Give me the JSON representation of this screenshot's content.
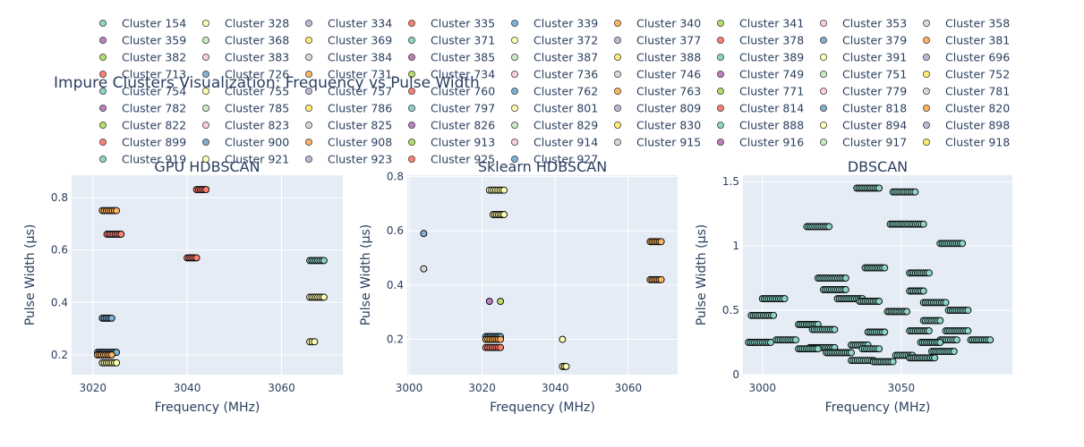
{
  "title": "Impure Clusters Visualization: Frequency vs Pulse Width",
  "legend": {
    "placement": "top",
    "columns": 9,
    "entries": [
      "Cluster 154",
      "Cluster 328",
      "Cluster 334",
      "Cluster 335",
      "Cluster 339",
      "Cluster 340",
      "Cluster 341",
      "Cluster 353",
      "Cluster 358",
      "Cluster 359",
      "Cluster 368",
      "Cluster 369",
      "Cluster 371",
      "Cluster 372",
      "Cluster 377",
      "Cluster 378",
      "Cluster 379",
      "Cluster 381",
      "Cluster 382",
      "Cluster 383",
      "Cluster 384",
      "Cluster 385",
      "Cluster 387",
      "Cluster 388",
      "Cluster 389",
      "Cluster 391",
      "Cluster 696",
      "Cluster 713",
      "Cluster 726",
      "Cluster 731",
      "Cluster 734",
      "Cluster 736",
      "Cluster 746",
      "Cluster 749",
      "Cluster 751",
      "Cluster 752",
      "Cluster 754",
      "Cluster 755",
      "Cluster 757",
      "Cluster 760",
      "Cluster 762",
      "Cluster 763",
      "Cluster 771",
      "Cluster 779",
      "Cluster 781",
      "Cluster 782",
      "Cluster 785",
      "Cluster 786",
      "Cluster 797",
      "Cluster 801",
      "Cluster 809",
      "Cluster 814",
      "Cluster 818",
      "Cluster 820",
      "Cluster 822",
      "Cluster 823",
      "Cluster 825",
      "Cluster 826",
      "Cluster 829",
      "Cluster 830",
      "Cluster 888",
      "Cluster 894",
      "Cluster 898",
      "Cluster 899",
      "Cluster 900",
      "Cluster 908",
      "Cluster 913",
      "Cluster 914",
      "Cluster 915",
      "Cluster 916",
      "Cluster 917",
      "Cluster 918",
      "Cluster 919",
      "Cluster 921",
      "Cluster 923",
      "Cluster 925",
      "Cluster 927"
    ]
  },
  "palette": [
    "#8dd3c7",
    "#ffffb3",
    "#bebada",
    "#fb8072",
    "#80b1d3",
    "#fdb462",
    "#b3de69",
    "#fccde5",
    "#d9d9d9",
    "#bc80bd",
    "#ccebc5",
    "#ffed6f"
  ],
  "colors": {
    "plot_bg": "#e5ecf6",
    "grid": "#ffffff",
    "text": "#2a3f5f",
    "marker_outline": "#000000"
  },
  "chart_data": [
    {
      "type": "scatter",
      "title": "GPU HDBSCAN",
      "xlabel": "Frequency (MHz)",
      "ylabel": "Pulse Width (µs)",
      "xlim": [
        3015.5,
        3073
      ],
      "ylim": [
        0.125,
        0.885
      ],
      "xticks": [
        3020,
        3040,
        3060
      ],
      "xtick_labels": [
        "3020",
        "3040",
        "3060"
      ],
      "yticks": [
        0.2,
        0.4,
        0.6,
        0.8
      ],
      "ytick_labels": [
        "0.2",
        "0.4",
        "0.6",
        "0.8"
      ],
      "grid": true,
      "groups": [
        {
          "x": [
            3042.0,
            3044.0
          ],
          "y": 0.83,
          "color": 3
        },
        {
          "x": [
            3022.0,
            3025.0
          ],
          "y": 0.75,
          "color": 5
        },
        {
          "x": [
            3023.0,
            3026.0
          ],
          "y": 0.66,
          "color": 3
        },
        {
          "x": [
            3040.0,
            3042.0
          ],
          "y": 0.57,
          "color": 3
        },
        {
          "x": [
            3066.0,
            3069.0
          ],
          "y": 0.56,
          "color": 0
        },
        {
          "x": [
            3066.0,
            3069.0
          ],
          "y": 0.42,
          "color": 1
        },
        {
          "x": [
            3022.0,
            3024.0
          ],
          "y": 0.34,
          "color": 4
        },
        {
          "x": [
            3066.0,
            3067.0
          ],
          "y": 0.25,
          "color": 1
        },
        {
          "x": [
            3021.0,
            3025.0
          ],
          "y": 0.21,
          "color": 4
        },
        {
          "x": [
            3021.0,
            3024.0
          ],
          "y": 0.2,
          "color": 5
        },
        {
          "x": [
            3022.0,
            3025.0
          ],
          "y": 0.17,
          "color": 1
        }
      ]
    },
    {
      "type": "scatter",
      "title": "Sklearn HDBSCAN",
      "xlabel": "Frequency (MHz)",
      "ylabel": "Pulse Width (µs)",
      "xlim": [
        2999.5,
        3073.5
      ],
      "ylim": [
        0.07,
        0.805
      ],
      "xticks": [
        3000,
        3020,
        3040,
        3060
      ],
      "xtick_labels": [
        "3000",
        "3020",
        "3040",
        "3060"
      ],
      "yticks": [
        0.2,
        0.4,
        0.6,
        0.8
      ],
      "ytick_labels": [
        "0.2",
        "0.4",
        "0.6",
        "0.8"
      ],
      "grid": true,
      "groups": [
        {
          "x": [
            3022.0,
            3026.0
          ],
          "y": 0.75,
          "color": 1
        },
        {
          "x": [
            3023.0,
            3026.0
          ],
          "y": 0.66,
          "color": 1
        },
        {
          "x": [
            3004.0,
            3004.0
          ],
          "y": 0.59,
          "color": 4
        },
        {
          "x": [
            3066.0,
            3069.0
          ],
          "y": 0.56,
          "color": 5
        },
        {
          "x": [
            3004.0,
            3004.0
          ],
          "y": 0.46,
          "color": 8
        },
        {
          "x": [
            3066.0,
            3069.0
          ],
          "y": 0.42,
          "color": 5
        },
        {
          "x": [
            3022.0,
            3022.0
          ],
          "y": 0.34,
          "color": 9
        },
        {
          "x": [
            3025.0,
            3025.0
          ],
          "y": 0.34,
          "color": 6
        },
        {
          "x": [
            3021.0,
            3025.0
          ],
          "y": 0.21,
          "color": 4
        },
        {
          "x": [
            3021.0,
            3025.0
          ],
          "y": 0.2,
          "color": 5
        },
        {
          "x": [
            3042.0,
            3042.0
          ],
          "y": 0.2,
          "color": 1
        },
        {
          "x": [
            3021.0,
            3025.0
          ],
          "y": 0.17,
          "color": 3
        },
        {
          "x": [
            3042.0,
            3043.0
          ],
          "y": 0.1,
          "color": 1
        }
      ]
    },
    {
      "type": "scatter",
      "title": "DBSCAN",
      "xlabel": "Frequency (MHz)",
      "ylabel": "Pulse Width (µs)",
      "xlim": [
        2993,
        3090
      ],
      "ylim": [
        0.0,
        1.55
      ],
      "xticks": [
        3000,
        3050
      ],
      "xtick_labels": [
        "3000",
        "3050"
      ],
      "yticks": [
        0,
        0.5,
        1,
        1.5
      ],
      "ytick_labels": [
        "0",
        "0.5",
        "1",
        "1.5"
      ],
      "grid": true,
      "groups": [
        {
          "x": [
            3034.0,
            3042.0
          ],
          "y": 1.45,
          "color": 0
        },
        {
          "x": [
            3047.0,
            3055.0
          ],
          "y": 1.42,
          "color": 0
        },
        {
          "x": [
            3046.0,
            3058.0
          ],
          "y": 1.17,
          "color": 0
        },
        {
          "x": [
            3016.0,
            3024.0
          ],
          "y": 1.15,
          "color": 0
        },
        {
          "x": [
            3064.0,
            3072.0
          ],
          "y": 1.02,
          "color": 0
        },
        {
          "x": [
            3037.0,
            3044.0
          ],
          "y": 0.83,
          "color": 0
        },
        {
          "x": [
            3053.0,
            3060.0
          ],
          "y": 0.79,
          "color": 0
        },
        {
          "x": [
            3020.0,
            3030.0
          ],
          "y": 0.75,
          "color": 0
        },
        {
          "x": [
            3022.0,
            3030.0
          ],
          "y": 0.66,
          "color": 0
        },
        {
          "x": [
            3053.0,
            3058.0
          ],
          "y": 0.65,
          "color": 0
        },
        {
          "x": [
            3000.0,
            3008.0
          ],
          "y": 0.59,
          "color": 0
        },
        {
          "x": [
            3027.0,
            3036.0
          ],
          "y": 0.59,
          "color": 0
        },
        {
          "x": [
            3035.0,
            3042.0
          ],
          "y": 0.57,
          "color": 0
        },
        {
          "x": [
            3058.0,
            3066.0
          ],
          "y": 0.56,
          "color": 0
        },
        {
          "x": [
            3067.0,
            3074.0
          ],
          "y": 0.5,
          "color": 0
        },
        {
          "x": [
            3045.0,
            3052.0
          ],
          "y": 0.49,
          "color": 0
        },
        {
          "x": [
            2996.0,
            3004.0
          ],
          "y": 0.46,
          "color": 0
        },
        {
          "x": [
            3058.0,
            3064.0
          ],
          "y": 0.42,
          "color": 0
        },
        {
          "x": [
            3013.0,
            3020.0
          ],
          "y": 0.39,
          "color": 0
        },
        {
          "x": [
            3018.0,
            3026.0
          ],
          "y": 0.35,
          "color": 0
        },
        {
          "x": [
            3053.0,
            3060.0
          ],
          "y": 0.34,
          "color": 0
        },
        {
          "x": [
            3066.0,
            3074.0
          ],
          "y": 0.34,
          "color": 0
        },
        {
          "x": [
            3038.0,
            3044.0
          ],
          "y": 0.33,
          "color": 0
        },
        {
          "x": [
            3005.0,
            3012.0
          ],
          "y": 0.27,
          "color": 0
        },
        {
          "x": [
            3064.0,
            3070.0
          ],
          "y": 0.27,
          "color": 0
        },
        {
          "x": [
            3075.0,
            3082.0
          ],
          "y": 0.27,
          "color": 0
        },
        {
          "x": [
            2995.0,
            3003.0
          ],
          "y": 0.25,
          "color": 0
        },
        {
          "x": [
            3057.0,
            3064.0
          ],
          "y": 0.25,
          "color": 0
        },
        {
          "x": [
            3032.0,
            3038.0
          ],
          "y": 0.23,
          "color": 0
        },
        {
          "x": [
            3017.0,
            3026.0
          ],
          "y": 0.21,
          "color": 0
        },
        {
          "x": [
            3036.0,
            3042.0
          ],
          "y": 0.2,
          "color": 0
        },
        {
          "x": [
            3013.0,
            3020.0
          ],
          "y": 0.2,
          "color": 0
        },
        {
          "x": [
            3061.0,
            3069.0
          ],
          "y": 0.18,
          "color": 0
        },
        {
          "x": [
            3023.0,
            3032.0
          ],
          "y": 0.17,
          "color": 0
        },
        {
          "x": [
            3048.0,
            3054.0
          ],
          "y": 0.15,
          "color": 0
        },
        {
          "x": [
            3053.0,
            3062.0
          ],
          "y": 0.13,
          "color": 0
        },
        {
          "x": [
            3032.0,
            3040.0
          ],
          "y": 0.11,
          "color": 0
        },
        {
          "x": [
            3040.0,
            3047.0
          ],
          "y": 0.1,
          "color": 0
        }
      ]
    }
  ]
}
